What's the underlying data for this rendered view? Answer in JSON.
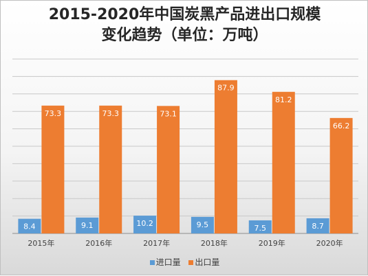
{
  "chart_data": {
    "type": "bar",
    "title_lines": [
      "2015-2020年中国炭黑产品进出口规模",
      "变化趋势（单位：万吨）"
    ],
    "categories": [
      "2015年",
      "2016年",
      "2017年",
      "2018年",
      "2019年",
      "2020年"
    ],
    "series": [
      {
        "name": "进口量",
        "color": "#5b9bd5",
        "values": [
          8.4,
          9.1,
          10.2,
          9.5,
          7.5,
          8.7
        ]
      },
      {
        "name": "出口量",
        "color": "#ed7d31",
        "values": [
          73.3,
          73.3,
          73.1,
          87.9,
          81.2,
          66.2
        ]
      }
    ],
    "data_labels": true,
    "ylim": [
      0,
      100
    ],
    "gridlines": true,
    "y_axis_labels_visible": false,
    "legend_position": "bottom"
  }
}
